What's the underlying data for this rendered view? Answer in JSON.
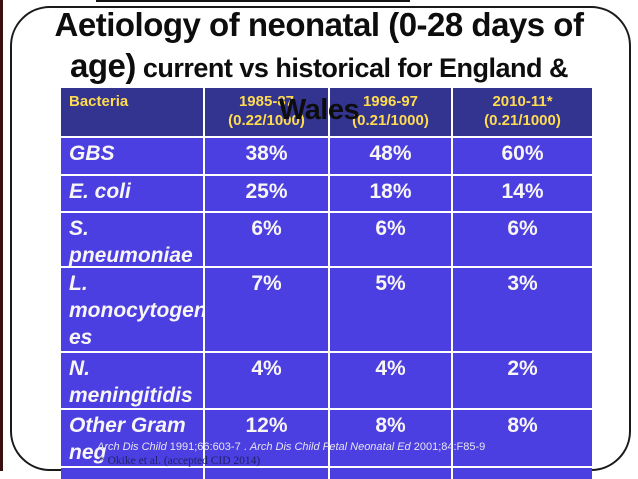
{
  "title": {
    "line1": "Aetiology of neonatal (0-28 days of",
    "line2_large": "age)",
    "line2_small": " current vs historical for England &",
    "line3": "Wales"
  },
  "table": {
    "header": {
      "col0": "Bacteria",
      "col1": "1985-87\n(0.22/1000)",
      "col2": "1996-97\n(0.21/1000)",
      "col3": "2010-11*\n(0.21/1000)"
    },
    "rows": [
      {
        "name": "GBS",
        "v1": "38%",
        "v2": "48%",
        "v3": "60%"
      },
      {
        "name": "E. coli",
        "v1": "25%",
        "v2": "18%",
        "v3": "14%"
      },
      {
        "name": "S.\npneumoniae",
        "v1": "6%",
        "v2": "6%",
        "v3": "6%"
      },
      {
        "name": "L.\nmonocytogen\nes",
        "v1": "7%",
        "v2": "5%",
        "v3": "3%"
      },
      {
        "name": "N.\nmeningitidis",
        "v1": "4%",
        "v2": "4%",
        "v3": "2%"
      },
      {
        "name": "Other Gram\nneg",
        "v1": "12%",
        "v2": "8%",
        "v3": "8%"
      }
    ],
    "partial_row": {
      "name": "",
      "v1": "",
      "v2": "",
      "v3": ""
    }
  },
  "footnotes": {
    "line1_segments": [
      {
        "text": "Arch Dis Child ",
        "italic": true
      },
      {
        "text": "1991;66:603-7 . ",
        "italic": false
      },
      {
        "text": "Arch Dis Child Fetal Neonatal Ed ",
        "italic": true
      },
      {
        "text": "2001;84:F85-9",
        "italic": false
      }
    ],
    "line2": "* Okike et al. (accepted CID 2014)"
  },
  "colors": {
    "header_bg": "#333390",
    "row_bg": "#4B3FE1",
    "header_text": "#FFDC4F",
    "row_text": "#F8F5F5",
    "title_text": "#0d0d0d",
    "footnote1_text": "#e6e4ef",
    "footnote2_text": "#1c2166"
  }
}
